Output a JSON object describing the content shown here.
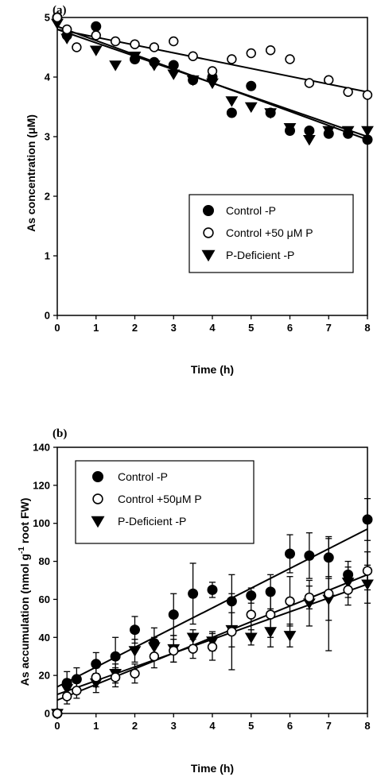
{
  "chart_data": [
    {
      "type": "scatter",
      "panel_label": "(a)",
      "title": "",
      "xlabel": "Time (h)",
      "ylabel": "As concentration (μM)",
      "xlim": [
        0,
        8
      ],
      "ylim": [
        0,
        5
      ],
      "xticks": [
        "0",
        "1",
        "2",
        "3",
        "4",
        "5",
        "6",
        "7",
        "8"
      ],
      "yticks": [
        "0",
        "1",
        "2",
        "3",
        "4",
        "5"
      ],
      "legend_position": "bottom-right",
      "series": [
        {
          "name": "Control -P",
          "marker": "filled-circle",
          "points": [
            [
              0,
              5.0
            ],
            [
              0.25,
              4.7
            ],
            [
              1,
              4.85
            ],
            [
              2,
              4.3
            ],
            [
              2.5,
              4.25
            ],
            [
              3,
              4.2
            ],
            [
              3.5,
              3.95
            ],
            [
              4,
              4.0
            ],
            [
              4.5,
              3.4
            ],
            [
              5,
              3.85
            ],
            [
              5.5,
              3.4
            ],
            [
              6,
              3.1
            ],
            [
              6.5,
              3.1
            ],
            [
              7,
              3.05
            ],
            [
              7.5,
              3.05
            ],
            [
              8,
              2.95
            ]
          ],
          "fit": [
            [
              0,
              4.85
            ],
            [
              8,
              2.95
            ]
          ]
        },
        {
          "name": "Control +50 μM P",
          "marker": "open-circle",
          "points": [
            [
              0,
              5.0
            ],
            [
              0.25,
              4.8
            ],
            [
              0.5,
              4.5
            ],
            [
              1,
              4.7
            ],
            [
              1.5,
              4.6
            ],
            [
              2,
              4.55
            ],
            [
              2.5,
              4.5
            ],
            [
              3,
              4.6
            ],
            [
              3.5,
              4.35
            ],
            [
              4,
              4.1
            ],
            [
              4.5,
              4.3
            ],
            [
              5,
              4.4
            ],
            [
              5.5,
              4.45
            ],
            [
              6,
              4.3
            ],
            [
              6.5,
              3.9
            ],
            [
              7,
              3.95
            ],
            [
              7.5,
              3.75
            ],
            [
              8,
              3.7
            ]
          ],
          "fit": [
            [
              0,
              4.8
            ],
            [
              8,
              3.75
            ]
          ]
        },
        {
          "name": "P-Deficient -P",
          "marker": "filled-triangle-down",
          "points": [
            [
              0,
              4.9
            ],
            [
              0.25,
              4.65
            ],
            [
              1,
              4.45
            ],
            [
              1.5,
              4.2
            ],
            [
              2,
              4.35
            ],
            [
              2.5,
              4.2
            ],
            [
              3,
              4.05
            ],
            [
              3.5,
              3.95
            ],
            [
              4,
              3.9
            ],
            [
              4.5,
              3.6
            ],
            [
              5,
              3.5
            ],
            [
              5.5,
              3.4
            ],
            [
              6,
              3.15
            ],
            [
              6.5,
              2.95
            ],
            [
              7,
              3.1
            ],
            [
              7.5,
              3.1
            ],
            [
              8,
              3.1
            ]
          ],
          "fit": [
            [
              0,
              4.8
            ],
            [
              8,
              3.0
            ]
          ]
        }
      ]
    },
    {
      "type": "scatter",
      "panel_label": "(b)",
      "title": "",
      "xlabel": "Time (h)",
      "ylabel": "As accumulation (nmol g-1 root FW)",
      "ylabel_parts": {
        "pre": "As accumulation (nmol g",
        "sup": "-1",
        "post": " root FW)"
      },
      "xlim": [
        0,
        8
      ],
      "ylim": [
        0,
        140
      ],
      "xticks": [
        "0",
        "1",
        "2",
        "3",
        "4",
        "5",
        "6",
        "7",
        "8"
      ],
      "yticks": [
        "0",
        "20",
        "40",
        "60",
        "80",
        "100",
        "120",
        "140"
      ],
      "legend_position": "top-left",
      "series": [
        {
          "name": "Control -P",
          "marker": "filled-circle",
          "points": [
            [
              0,
              0,
              0
            ],
            [
              0.25,
              16,
              6
            ],
            [
              0.5,
              18,
              6
            ],
            [
              1,
              26,
              6
            ],
            [
              1.5,
              30,
              10
            ],
            [
              2,
              44,
              7
            ],
            [
              2.5,
              37,
              8
            ],
            [
              3,
              52,
              11
            ],
            [
              3.5,
              63,
              16
            ],
            [
              4,
              65,
              4
            ],
            [
              4.5,
              59,
              14
            ],
            [
              5,
              62,
              4
            ],
            [
              5.5,
              64,
              9
            ],
            [
              6,
              84,
              10
            ],
            [
              6.5,
              83,
              12
            ],
            [
              7,
              82,
              10
            ],
            [
              7.5,
              73,
              7
            ],
            [
              8,
              102,
              11
            ]
          ],
          "fit": [
            [
              0,
              14
            ],
            [
              8,
              97
            ]
          ]
        },
        {
          "name": "Control +50μM P",
          "marker": "open-circle",
          "points": [
            [
              0,
              0,
              0
            ],
            [
              0.25,
              9,
              4
            ],
            [
              0.5,
              12,
              4
            ],
            [
              1,
              19,
              5
            ],
            [
              1.5,
              19,
              5
            ],
            [
              2,
              21,
              5
            ],
            [
              2.5,
              30,
              6
            ],
            [
              3,
              33,
              6
            ],
            [
              3.5,
              34,
              5
            ],
            [
              4,
              35,
              7
            ],
            [
              4.5,
              43,
              20
            ],
            [
              5,
              52,
              10
            ],
            [
              5.5,
              52,
              12
            ],
            [
              6,
              59,
              13
            ],
            [
              6.5,
              61,
              6
            ],
            [
              7,
              63,
              30
            ],
            [
              7.5,
              65,
              8
            ],
            [
              8,
              75,
              10
            ]
          ],
          "fit": [
            [
              0,
              7
            ],
            [
              8,
              73
            ]
          ]
        },
        {
          "name": "P-Deficient -P",
          "marker": "filled-triangle-down",
          "points": [
            [
              0,
              0,
              0
            ],
            [
              0.25,
              13,
              5
            ],
            [
              1,
              16,
              5
            ],
            [
              1.5,
              21,
              5
            ],
            [
              2,
              33,
              6
            ],
            [
              2.5,
              35,
              5
            ],
            [
              3,
              34,
              7
            ],
            [
              3.5,
              40,
              4
            ],
            [
              4,
              38,
              5
            ],
            [
              4.5,
              44,
              9
            ],
            [
              5,
              40,
              4
            ],
            [
              5.5,
              43,
              8
            ],
            [
              6,
              41,
              6
            ],
            [
              6.5,
              58,
              12
            ],
            [
              7,
              60,
              11
            ],
            [
              7.5,
              69,
              8
            ],
            [
              8,
              68,
              10
            ]
          ],
          "fit": [
            [
              0,
              10
            ],
            [
              8,
              68
            ]
          ]
        }
      ]
    }
  ]
}
